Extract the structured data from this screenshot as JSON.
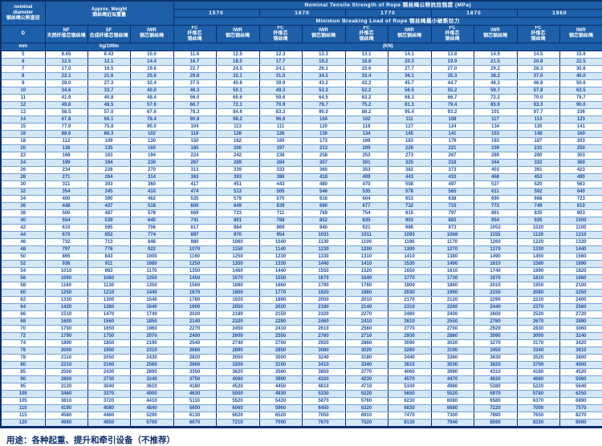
{
  "header": {
    "nominal_diameter_en1": "nominal",
    "nominal_diameter_en2": "diameter",
    "nominal_diameter_zh": "钢丝绳公称直径",
    "d_label": "D",
    "mm_label": "mm",
    "approx_weight_en": "Approx. Weight",
    "approx_weight_zh": "钢丝绳近似重量",
    "kg_label": "kg/100m",
    "tensile_title": "Nominal Tensile Strength of Rope 钢丝绳公称抗拉强度 (MPa)",
    "breaking_title": "Minimun Breaking Load of Rope 钢丝绳最小破断拉力",
    "kn_label": "(KN)",
    "grades": [
      "1570",
      "1670",
      "1770",
      "1870",
      "1960"
    ],
    "weight_cols": [
      {
        "abbr": "NF",
        "zh": "天然纤维芯钢丝绳"
      },
      {
        "abbr": "SF",
        "zh": "合成纤维芯钢丝绳"
      },
      {
        "abbr": "IWR",
        "zh": "钢芯钢丝绳"
      }
    ],
    "fc_abbr": "FC",
    "fc_zh1": "纤维芯",
    "fc_zh2": "钢丝绳",
    "iwr_abbr": "IWR",
    "iwr_zh": "钢芯钢丝绳"
  },
  "rows": [
    [
      "5",
      "8.65",
      "8.43",
      "10.0",
      "11.6",
      "12.5",
      "12.3",
      "13.3",
      "13.1",
      "14.1",
      "13.8",
      "14.9",
      "14.5",
      "15.6"
    ],
    [
      "6",
      "12.5",
      "12.1",
      "14.4",
      "16.7",
      "18.0",
      "17.7",
      "19.2",
      "18.8",
      "20.3",
      "19.9",
      "21.5",
      "20.8",
      "22.5"
    ],
    [
      "7",
      "17.0",
      "16.5",
      "19.6",
      "22.7",
      "24.5",
      "24.1",
      "26.1",
      "25.6",
      "27.7",
      "27.0",
      "29.2",
      "28.3",
      "30.6"
    ],
    [
      "8",
      "22.1",
      "21.6",
      "25.6",
      "29.6",
      "32.1",
      "31.5",
      "34.1",
      "33.4",
      "36.1",
      "35.3",
      "38.2",
      "37.0",
      "40.0"
    ],
    [
      "9",
      "28.0",
      "27.3",
      "32.4",
      "37.5",
      "40.6",
      "39.9",
      "43.2",
      "42.3",
      "45.7",
      "44.7",
      "48.3",
      "46.8",
      "50.6"
    ],
    [
      "10",
      "34.6",
      "33.7",
      "40.0",
      "46.3",
      "50.1",
      "49.3",
      "53.3",
      "52.2",
      "56.5",
      "55.2",
      "59.7",
      "57.8",
      "62.5"
    ],
    [
      "11",
      "41.9",
      "40.8",
      "48.4",
      "56.0",
      "60.6",
      "59.6",
      "64.5",
      "63.2",
      "68.3",
      "66.7",
      "72.2",
      "70.0",
      "75.7"
    ],
    [
      "12",
      "49.8",
      "48.5",
      "57.6",
      "66.7",
      "72.1",
      "70.9",
      "76.7",
      "75.2",
      "81.3",
      "79.4",
      "85.9",
      "83.3",
      "90.0"
    ],
    [
      "13",
      "58.5",
      "57.0",
      "67.6",
      "78.3",
      "84.6",
      "83.3",
      "90.0",
      "88.2",
      "95.4",
      "93.2",
      "101",
      "97.7",
      "106"
    ],
    [
      "14",
      "67.8",
      "66.1",
      "78.4",
      "90.8",
      "98.2",
      "96.6",
      "104",
      "102",
      "111",
      "108",
      "117",
      "113",
      "123"
    ],
    [
      "15",
      "77.9",
      "75.8",
      "90.0",
      "104",
      "113",
      "111",
      "120",
      "118",
      "127",
      "124",
      "134",
      "130",
      "141"
    ],
    [
      "16",
      "88.6",
      "86.3",
      "102",
      "119",
      "128",
      "126",
      "136",
      "134",
      "145",
      "141",
      "153",
      "148",
      "160"
    ],
    [
      "18",
      "112",
      "109",
      "130",
      "150",
      "162",
      "160",
      "173",
      "169",
      "183",
      "179",
      "193",
      "187",
      "203"
    ],
    [
      "20",
      "138",
      "135",
      "160",
      "185",
      "200",
      "197",
      "213",
      "209",
      "226",
      "221",
      "239",
      "231",
      "250"
    ],
    [
      "22",
      "168",
      "163",
      "194",
      "224",
      "242",
      "238",
      "258",
      "253",
      "273",
      "267",
      "289",
      "280",
      "303"
    ],
    [
      "24",
      "199",
      "194",
      "230",
      "267",
      "289",
      "284",
      "307",
      "301",
      "325",
      "318",
      "344",
      "333",
      "360"
    ],
    [
      "26",
      "234",
      "228",
      "270",
      "313",
      "339",
      "333",
      "360",
      "353",
      "382",
      "373",
      "403",
      "391",
      "423"
    ],
    [
      "28",
      "271",
      "264",
      "314",
      "363",
      "393",
      "386",
      "418",
      "409",
      "443",
      "433",
      "468",
      "453",
      "490"
    ],
    [
      "30",
      "311",
      "303",
      "360",
      "417",
      "451",
      "443",
      "480",
      "470",
      "508",
      "497",
      "537",
      "520",
      "563"
    ],
    [
      "32",
      "354",
      "345",
      "410",
      "474",
      "513",
      "505",
      "546",
      "535",
      "578",
      "565",
      "611",
      "592",
      "640"
    ],
    [
      "34",
      "400",
      "390",
      "462",
      "535",
      "579",
      "570",
      "616",
      "604",
      "653",
      "638",
      "690",
      "668",
      "723"
    ],
    [
      "36",
      "448",
      "437",
      "518",
      "600",
      "649",
      "639",
      "690",
      "677",
      "732",
      "715",
      "773",
      "749",
      "810"
    ],
    [
      "38",
      "500",
      "487",
      "578",
      "669",
      "723",
      "711",
      "769",
      "754",
      "815",
      "797",
      "861",
      "835",
      "903"
    ],
    [
      "40",
      "554",
      "539",
      "640",
      "741",
      "801",
      "788",
      "852",
      "835",
      "903",
      "883",
      "954",
      "925",
      "1000"
    ],
    [
      "42",
      "610",
      "595",
      "706",
      "817",
      "884",
      "869",
      "940",
      "921",
      "996",
      "973",
      "1052",
      "1020",
      "1100"
    ],
    [
      "44",
      "670",
      "652",
      "774",
      "897",
      "970",
      "954",
      "1031",
      "1011",
      "1093",
      "1068",
      "1155",
      "1120",
      "1210"
    ],
    [
      "46",
      "732",
      "713",
      "846",
      "980",
      "1060",
      "1040",
      "1130",
      "1100",
      "1190",
      "1170",
      "1260",
      "1220",
      "1320"
    ],
    [
      "48",
      "797",
      "776",
      "922",
      "1070",
      "1150",
      "1140",
      "1230",
      "1200",
      "1300",
      "1270",
      "1370",
      "1330",
      "1440"
    ],
    [
      "50",
      "865",
      "843",
      "1000",
      "1160",
      "1250",
      "1230",
      "1330",
      "1310",
      "1410",
      "1380",
      "1490",
      "1450",
      "1560"
    ],
    [
      "52",
      "936",
      "911",
      "1080",
      "1250",
      "1350",
      "1330",
      "1440",
      "1410",
      "1530",
      "1490",
      "1610",
      "1560",
      "1690"
    ],
    [
      "54",
      "1010",
      "983",
      "1170",
      "1350",
      "1460",
      "1440",
      "1550",
      "1520",
      "1650",
      "1610",
      "1740",
      "1690",
      "1820"
    ],
    [
      "56",
      "1090",
      "1060",
      "1250",
      "1450",
      "1570",
      "1550",
      "1670",
      "1640",
      "1770",
      "1730",
      "1870",
      "1810",
      "1960"
    ],
    [
      "58",
      "1160",
      "1130",
      "1350",
      "1560",
      "1680",
      "1660",
      "1790",
      "1760",
      "1900",
      "1860",
      "2010",
      "1950",
      "2100"
    ],
    [
      "60",
      "1250",
      "1210",
      "1440",
      "1670",
      "1800",
      "1770",
      "1920",
      "1880",
      "2030",
      "1990",
      "2150",
      "2080",
      "2250"
    ],
    [
      "62",
      "1330",
      "1300",
      "1540",
      "1780",
      "1920",
      "1890",
      "2050",
      "2010",
      "2170",
      "2120",
      "2290",
      "2220",
      "2400"
    ],
    [
      "64",
      "1420",
      "1380",
      "1640",
      "1900",
      "2050",
      "2020",
      "2180",
      "2140",
      "2310",
      "2260",
      "2440",
      "2370",
      "2560"
    ],
    [
      "66",
      "1510",
      "1470",
      "1740",
      "2020",
      "2180",
      "2150",
      "2320",
      "2270",
      "2460",
      "2400",
      "2600",
      "2520",
      "2720"
    ],
    [
      "68",
      "1600",
      "1560",
      "1850",
      "2140",
      "2320",
      "2280",
      "2460",
      "2410",
      "2610",
      "2550",
      "2760",
      "2670",
      "2890"
    ],
    [
      "70",
      "1700",
      "1650",
      "1960",
      "2270",
      "2450",
      "2410",
      "2610",
      "2560",
      "2770",
      "2700",
      "2920",
      "2830",
      "3060"
    ],
    [
      "72",
      "1790",
      "1750",
      "2070",
      "2400",
      "2600",
      "2550",
      "2760",
      "2710",
      "2930",
      "2860",
      "3090",
      "3000",
      "3240"
    ],
    [
      "74",
      "1890",
      "1850",
      "2190",
      "2540",
      "2740",
      "2700",
      "2920",
      "2860",
      "3090",
      "3020",
      "3270",
      "3170",
      "3420"
    ],
    [
      "76",
      "2000",
      "1950",
      "2310",
      "2680",
      "2890",
      "2850",
      "3080",
      "3020",
      "3260",
      "3190",
      "3450",
      "3340",
      "3610"
    ],
    [
      "78",
      "2110",
      "2050",
      "2430",
      "2820",
      "3050",
      "3000",
      "3240",
      "3180",
      "3440",
      "3360",
      "3630",
      "3520",
      "3800"
    ],
    [
      "80",
      "2210",
      "2160",
      "2560",
      "2960",
      "3200",
      "3150",
      "3410",
      "3340",
      "3610",
      "3530",
      "3820",
      "3700",
      "4000"
    ],
    [
      "85",
      "2500",
      "2430",
      "2890",
      "3350",
      "3620",
      "3560",
      "3850",
      "3770",
      "4060",
      "3990",
      "4310",
      "4180",
      "4520"
    ],
    [
      "90",
      "2800",
      "2730",
      "3240",
      "3750",
      "4060",
      "3990",
      "4320",
      "4230",
      "4570",
      "4470",
      "4830",
      "4680",
      "5060"
    ],
    [
      "95",
      "3120",
      "3040",
      "3610",
      "4180",
      "4520",
      "4450",
      "4810",
      "4710",
      "5100",
      "4980",
      "5380",
      "5220",
      "5640"
    ],
    [
      "100",
      "3460",
      "3370",
      "4000",
      "4630",
      "5000",
      "4930",
      "5330",
      "5220",
      "5650",
      "5520",
      "5970",
      "5780",
      "6250"
    ],
    [
      "105",
      "3810",
      "3720",
      "4410",
      "5110",
      "5520",
      "5430",
      "5870",
      "5760",
      "6230",
      "6080",
      "6580",
      "6370",
      "6890"
    ],
    [
      "110",
      "4190",
      "4080",
      "4840",
      "5600",
      "6060",
      "5960",
      "6450",
      "6320",
      "6830",
      "6680",
      "7220",
      "7000",
      "7570"
    ],
    [
      "115",
      "4580",
      "4460",
      "5290",
      "6130",
      "6620",
      "6520",
      "7050",
      "6910",
      "7470",
      "7300",
      "7890",
      "7650",
      "8270"
    ],
    [
      "120",
      "4980",
      "4850",
      "5700",
      "6670",
      "7210",
      "7090",
      "7670",
      "7520",
      "8130",
      "7940",
      "8590",
      "8330",
      "9000"
    ]
  ],
  "footer": {
    "usage": "用途：各种起重、提升和牵引设备（不推荐）"
  },
  "colors": {
    "header_bg": "#1d5fa8",
    "header_text": "#ffffff",
    "grid_dark": "#0d2f6b",
    "grid_light": "#76a3d4",
    "row_stripe": "#d3e7f7",
    "data_text": "#1d4ea0",
    "footer_text": "#0d2f6b"
  }
}
